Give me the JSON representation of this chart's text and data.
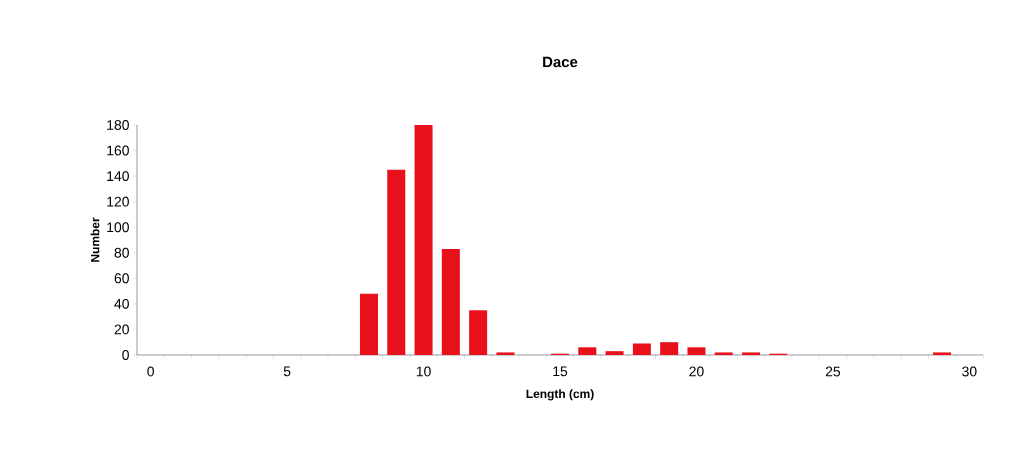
{
  "chart_data": {
    "type": "bar",
    "title": "Dace",
    "xlabel": "Length (cm)",
    "ylabel": "Number",
    "categories": [
      "0",
      null,
      null,
      null,
      null,
      "5",
      null,
      null,
      null,
      null,
      "10",
      null,
      null,
      null,
      null,
      "15",
      null,
      null,
      null,
      null,
      "20",
      null,
      null,
      null,
      null,
      "25",
      null,
      null,
      null,
      null,
      "30"
    ],
    "values": [
      0,
      0,
      0,
      0,
      0,
      0,
      0,
      0,
      48,
      145,
      180,
      83,
      35,
      2,
      0,
      1,
      6,
      3,
      9,
      10,
      6,
      2,
      2,
      1,
      0,
      0,
      0,
      0,
      0,
      2,
      0
    ],
    "color": "#e8101a",
    "ylim": [
      0,
      180
    ],
    "yticks": [
      0,
      20,
      40,
      60,
      80,
      100,
      120,
      140,
      160,
      180
    ]
  }
}
